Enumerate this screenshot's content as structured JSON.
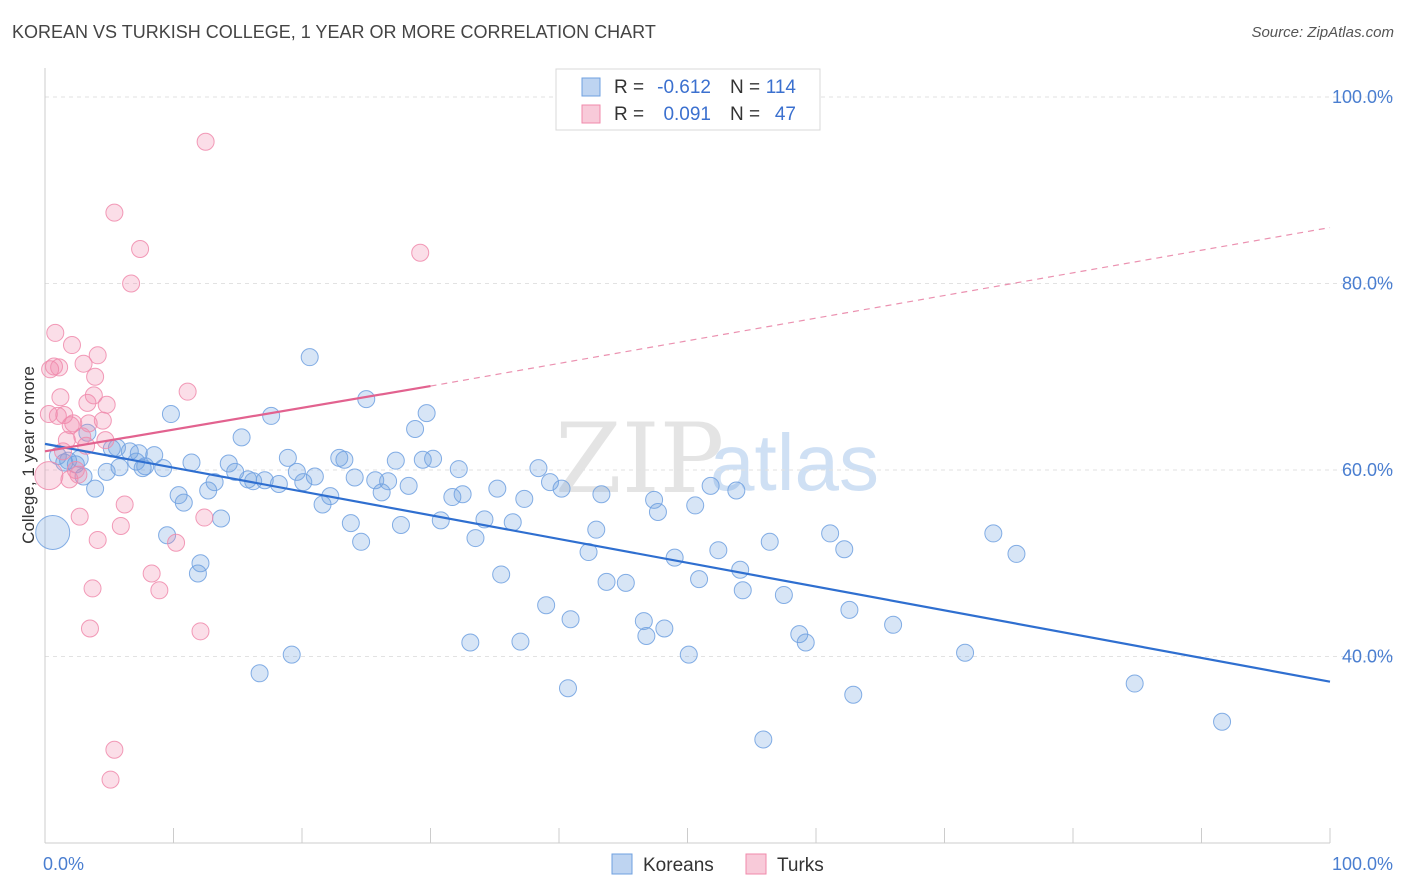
{
  "title": "KOREAN VS TURKISH COLLEGE, 1 YEAR OR MORE CORRELATION CHART",
  "source": "Source: ZipAtlas.com",
  "watermark": {
    "zip": "ZIP",
    "atlas": "atlas"
  },
  "chart_data": {
    "type": "scatter",
    "title": "KOREAN VS TURKISH COLLEGE, 1 YEAR OR MORE CORRELATION CHART",
    "xlabel": "",
    "ylabel": "College, 1 year or more",
    "xlim": [
      0,
      100
    ],
    "ylim": [
      20,
      100
    ],
    "x_tick_labels": [
      {
        "value": 0,
        "label": "0.0%"
      },
      {
        "value": 100,
        "label": "100.0%"
      }
    ],
    "y_tick_labels": [
      {
        "value": 100,
        "label": "100.0%"
      },
      {
        "value": 80,
        "label": "80.0%"
      },
      {
        "value": 60,
        "label": "60.0%"
      },
      {
        "value": 40,
        "label": "40.0%"
      }
    ],
    "grid": true,
    "legend_position": "top-center",
    "stats_legend": [
      {
        "r_label": "R = ",
        "r_value": "-0.612",
        "n_label": "N = ",
        "n_value": "114",
        "color": "#6fa0e0"
      },
      {
        "r_label": "R = ",
        "r_value": "0.091",
        "n_label": "N = ",
        "n_value": "47",
        "color": "#f08aab"
      }
    ],
    "series": [
      {
        "name": "Koreans",
        "color": "#6fa0e0",
        "trend": {
          "x": [
            0,
            100
          ],
          "y": [
            62.8,
            37.3
          ],
          "color": "#2f6fd0"
        },
        "points": [
          [
            0.6,
            53.3
          ],
          [
            1.0,
            61.5
          ],
          [
            1.5,
            60.8
          ],
          [
            1.8,
            61.0
          ],
          [
            2.4,
            60.6
          ],
          [
            2.7,
            61.2
          ],
          [
            3.0,
            59.3
          ],
          [
            3.3,
            64.0
          ],
          [
            3.9,
            58.0
          ],
          [
            4.8,
            59.8
          ],
          [
            5.2,
            62.3
          ],
          [
            5.6,
            62.4
          ],
          [
            5.8,
            60.3
          ],
          [
            6.6,
            62.0
          ],
          [
            7.1,
            60.9
          ],
          [
            7.3,
            61.8
          ],
          [
            7.6,
            60.2
          ],
          [
            7.8,
            60.4
          ],
          [
            8.5,
            61.6
          ],
          [
            9.2,
            60.2
          ],
          [
            9.5,
            53.0
          ],
          [
            9.8,
            66.0
          ],
          [
            10.4,
            57.3
          ],
          [
            10.8,
            56.5
          ],
          [
            11.4,
            60.8
          ],
          [
            11.9,
            48.9
          ],
          [
            12.1,
            50.0
          ],
          [
            12.7,
            57.8
          ],
          [
            13.2,
            58.7
          ],
          [
            13.7,
            54.8
          ],
          [
            14.3,
            60.7
          ],
          [
            14.8,
            59.8
          ],
          [
            15.3,
            63.5
          ],
          [
            15.8,
            59.0
          ],
          [
            16.2,
            58.8
          ],
          [
            16.7,
            38.2
          ],
          [
            17.1,
            58.9
          ],
          [
            17.6,
            65.8
          ],
          [
            18.2,
            58.5
          ],
          [
            18.9,
            61.3
          ],
          [
            19.2,
            40.2
          ],
          [
            19.6,
            59.8
          ],
          [
            20.1,
            58.7
          ],
          [
            20.6,
            72.1
          ],
          [
            21.0,
            59.3
          ],
          [
            21.6,
            56.3
          ],
          [
            22.2,
            57.2
          ],
          [
            22.9,
            61.3
          ],
          [
            23.3,
            61.1
          ],
          [
            23.8,
            54.3
          ],
          [
            24.1,
            59.2
          ],
          [
            24.6,
            52.3
          ],
          [
            25.0,
            67.6
          ],
          [
            25.7,
            58.9
          ],
          [
            26.2,
            57.6
          ],
          [
            26.7,
            58.8
          ],
          [
            27.3,
            61.0
          ],
          [
            27.7,
            54.1
          ],
          [
            28.3,
            58.3
          ],
          [
            28.8,
            64.4
          ],
          [
            29.4,
            61.1
          ],
          [
            29.7,
            66.1
          ],
          [
            30.2,
            61.2
          ],
          [
            30.8,
            54.6
          ],
          [
            31.7,
            57.1
          ],
          [
            32.2,
            60.1
          ],
          [
            32.5,
            57.4
          ],
          [
            33.1,
            41.5
          ],
          [
            33.5,
            52.7
          ],
          [
            34.2,
            54.7
          ],
          [
            35.2,
            58.0
          ],
          [
            35.5,
            48.8
          ],
          [
            36.4,
            54.4
          ],
          [
            37.0,
            41.6
          ],
          [
            37.3,
            56.9
          ],
          [
            38.4,
            60.2
          ],
          [
            39.0,
            45.5
          ],
          [
            39.3,
            58.7
          ],
          [
            40.2,
            58.0
          ],
          [
            40.7,
            36.6
          ],
          [
            40.9,
            44.0
          ],
          [
            42.3,
            51.2
          ],
          [
            42.9,
            53.6
          ],
          [
            43.3,
            57.4
          ],
          [
            43.7,
            48.0
          ],
          [
            45.2,
            47.9
          ],
          [
            46.6,
            43.8
          ],
          [
            46.8,
            42.2
          ],
          [
            47.4,
            56.8
          ],
          [
            47.7,
            55.5
          ],
          [
            48.2,
            43.0
          ],
          [
            49.0,
            50.6
          ],
          [
            50.1,
            40.2
          ],
          [
            50.6,
            56.2
          ],
          [
            50.9,
            48.3
          ],
          [
            51.8,
            58.3
          ],
          [
            52.4,
            51.4
          ],
          [
            53.8,
            57.8
          ],
          [
            54.1,
            49.3
          ],
          [
            54.3,
            47.1
          ],
          [
            55.9,
            31.1
          ],
          [
            56.4,
            52.3
          ],
          [
            57.5,
            46.6
          ],
          [
            58.7,
            42.4
          ],
          [
            59.2,
            41.5
          ],
          [
            61.1,
            53.2
          ],
          [
            62.2,
            51.5
          ],
          [
            62.6,
            45.0
          ],
          [
            62.9,
            35.9
          ],
          [
            66.0,
            43.4
          ],
          [
            71.6,
            40.4
          ],
          [
            73.8,
            53.2
          ],
          [
            75.6,
            51.0
          ],
          [
            84.8,
            37.1
          ],
          [
            91.6,
            33.0
          ]
        ]
      },
      {
        "name": "Turks",
        "color": "#f08aab",
        "trend": {
          "x": [
            0,
            30
          ],
          "y": [
            62.0,
            69.0
          ],
          "extend_to": [
            100,
            86.0
          ],
          "color": "#e2628f"
        },
        "points": [
          [
            0.3,
            59.4
          ],
          [
            0.3,
            66.0
          ],
          [
            0.4,
            70.8
          ],
          [
            0.7,
            71.1
          ],
          [
            0.8,
            74.7
          ],
          [
            1.0,
            65.8
          ],
          [
            1.1,
            71.0
          ],
          [
            1.4,
            62.0
          ],
          [
            1.5,
            65.9
          ],
          [
            1.7,
            63.2
          ],
          [
            1.9,
            59.0
          ],
          [
            2.1,
            73.4
          ],
          [
            2.2,
            65.0
          ],
          [
            2.4,
            60.0
          ],
          [
            2.6,
            59.5
          ],
          [
            2.7,
            55.0
          ],
          [
            2.9,
            63.6
          ],
          [
            3.0,
            71.4
          ],
          [
            3.2,
            62.6
          ],
          [
            3.3,
            67.2
          ],
          [
            3.4,
            65.0
          ],
          [
            3.5,
            43.0
          ],
          [
            3.7,
            47.3
          ],
          [
            3.8,
            68.0
          ],
          [
            3.9,
            70.0
          ],
          [
            4.1,
            72.3
          ],
          [
            4.1,
            52.5
          ],
          [
            4.5,
            65.3
          ],
          [
            4.7,
            63.2
          ],
          [
            4.8,
            67.0
          ],
          [
            5.4,
            87.6
          ],
          [
            5.4,
            30.0
          ],
          [
            5.1,
            26.8
          ],
          [
            5.9,
            54.0
          ],
          [
            6.2,
            56.3
          ],
          [
            6.7,
            80.0
          ],
          [
            7.4,
            83.7
          ],
          [
            8.3,
            48.9
          ],
          [
            8.9,
            47.1
          ],
          [
            10.2,
            52.2
          ],
          [
            11.1,
            68.4
          ],
          [
            12.1,
            42.7
          ],
          [
            12.4,
            54.9
          ],
          [
            12.5,
            95.2
          ],
          [
            29.2,
            83.3
          ],
          [
            1.2,
            67.8
          ],
          [
            2.0,
            64.8
          ]
        ]
      }
    ]
  },
  "bottom_legend": [
    {
      "label": "Koreans",
      "color": "#6fa0e0"
    },
    {
      "label": "Turks",
      "color": "#f08aab"
    }
  ]
}
